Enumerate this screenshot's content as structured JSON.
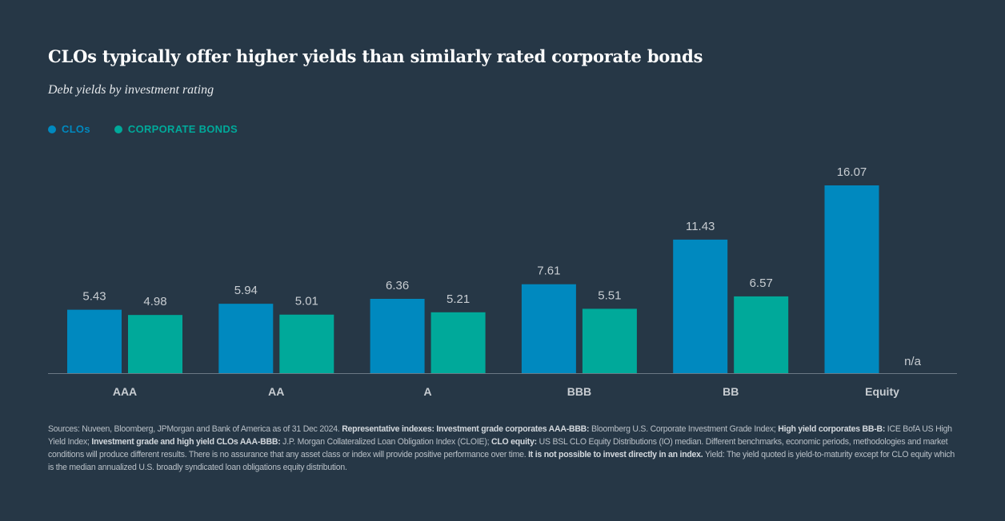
{
  "title": "CLOs typically offer higher yields than similarly rated corporate bonds",
  "subtitle": "Debt yields by investment rating",
  "colors": {
    "background": "#263746",
    "clo": "#0089bf",
    "corporate": "#00a99a"
  },
  "chart_data": {
    "type": "bar",
    "title": "CLOs typically offer higher yields than similarly rated corporate bonds",
    "subtitle": "Debt yields by investment rating",
    "categories": [
      "AAA",
      "AA",
      "A",
      "BBB",
      "BB",
      "Equity"
    ],
    "series": [
      {
        "name": "CLOs",
        "color": "#0089bf",
        "values": [
          5.43,
          5.94,
          6.36,
          7.61,
          11.43,
          16.07
        ],
        "labels": [
          "5.43",
          "5.94",
          "6.36",
          "7.61",
          "11.43",
          "16.07"
        ]
      },
      {
        "name": "CORPORATE BONDS",
        "color": "#00a99a",
        "values": [
          4.98,
          5.01,
          5.21,
          5.51,
          6.57,
          null
        ],
        "labels": [
          "4.98",
          "5.01",
          "5.21",
          "5.51",
          "6.57",
          "n/a"
        ]
      }
    ],
    "ylim": [
      0,
      16.07
    ],
    "grid": false,
    "legend": "top-left",
    "xlabel": "",
    "ylabel": ""
  },
  "footnote": [
    {
      "text": "Sources: Nuveen, Bloomberg, JPMorgan and Bank of America as of 31 Dec 2024. ",
      "bold": false
    },
    {
      "text": "Representative indexes: Investment grade corporates AAA-BBB:",
      "bold": true
    },
    {
      "text": " Bloomberg U.S. Corporate Investment Grade Index; ",
      "bold": false
    },
    {
      "text": "High yield corporates BB-B:",
      "bold": true
    },
    {
      "text": " ICE BofA US High Yield Index; ",
      "bold": false
    },
    {
      "text": "Investment grade and high yield CLOs AAA-BBB:",
      "bold": true
    },
    {
      "text": " J.P. Morgan Collateralized Loan Obligation Index (CLOIE); ",
      "bold": false
    },
    {
      "text": "CLO equity:",
      "bold": true
    },
    {
      "text": " US BSL CLO Equity Distributions (IO) median. Different benchmarks, economic periods, methodologies and market conditions will produce different results. There is no assurance that any asset class or index will provide positive performance over time. ",
      "bold": false
    },
    {
      "text": "It is not possible to invest directly in an index.",
      "bold": true
    },
    {
      "text": " Yield: The yield quoted is yield-to-maturity except for CLO equity which is the median annualized U.S. broadly syndicated loan obligations equity distribution.",
      "bold": false
    }
  ]
}
